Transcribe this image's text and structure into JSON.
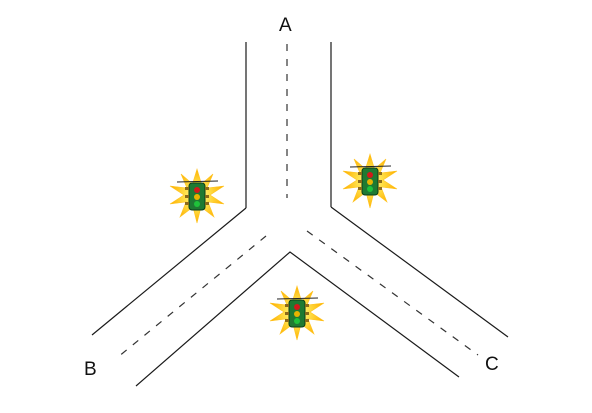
{
  "labels": {
    "a": "A",
    "b": "B",
    "c": "C"
  },
  "icons": {
    "traffic_light": "traffic-light-icon",
    "glow": "starburst-glow"
  },
  "colors": {
    "road": "#1a1a1a",
    "lane": "#333333",
    "light_body": "#1f7a32",
    "light_outline": "#0b3d18",
    "lamp_red": "#d11a1a",
    "lamp_amber": "#e8b400",
    "lamp_green": "#1fc23a",
    "glow_inner": "#ffe14a",
    "glow_outer": "#ffb000"
  }
}
